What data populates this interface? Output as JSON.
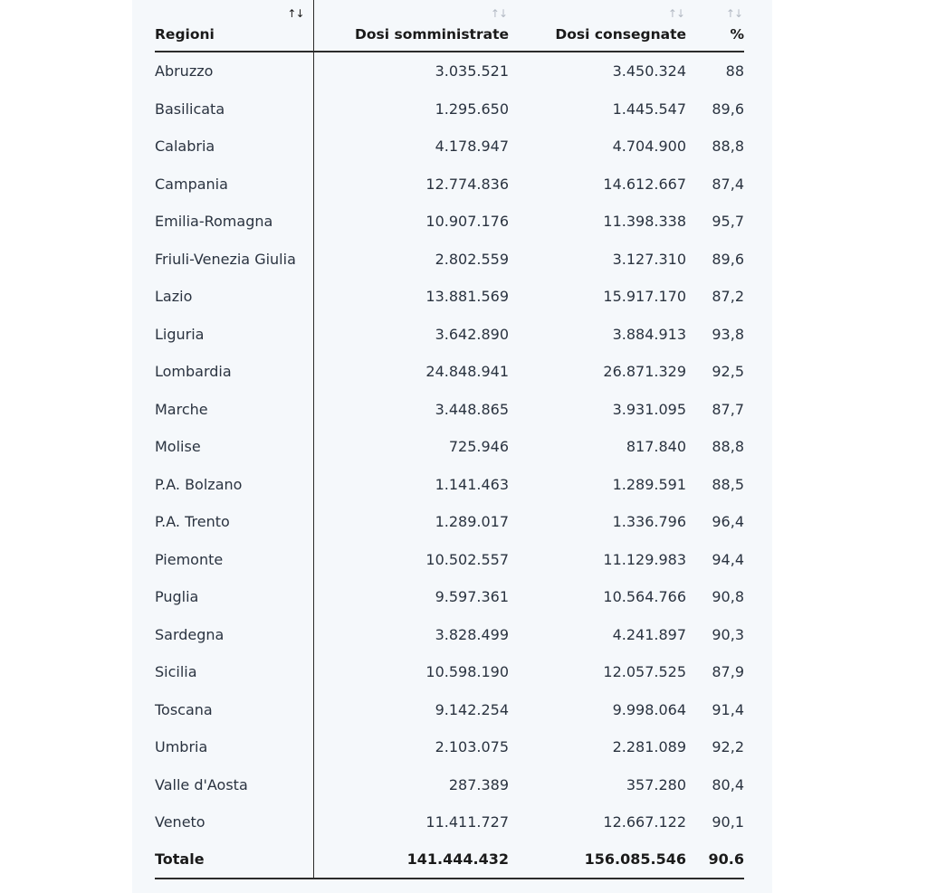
{
  "table": {
    "headers": {
      "regioni": "Regioni",
      "somministrate": "Dosi somministrate",
      "consegnate": "Dosi consegnate",
      "percent": "%",
      "sort_icon": "↑↓"
    },
    "rows": [
      {
        "region": "Abruzzo",
        "somministrate": "3.035.521",
        "consegnate": "3.450.324",
        "percent": "88"
      },
      {
        "region": "Basilicata",
        "somministrate": "1.295.650",
        "consegnate": "1.445.547",
        "percent": "89,6"
      },
      {
        "region": "Calabria",
        "somministrate": "4.178.947",
        "consegnate": "4.704.900",
        "percent": "88,8"
      },
      {
        "region": "Campania",
        "somministrate": "12.774.836",
        "consegnate": "14.612.667",
        "percent": "87,4"
      },
      {
        "region": "Emilia-Romagna",
        "somministrate": "10.907.176",
        "consegnate": "11.398.338",
        "percent": "95,7"
      },
      {
        "region": "Friuli-Venezia Giulia",
        "somministrate": "2.802.559",
        "consegnate": "3.127.310",
        "percent": "89,6"
      },
      {
        "region": "Lazio",
        "somministrate": "13.881.569",
        "consegnate": "15.917.170",
        "percent": "87,2"
      },
      {
        "region": "Liguria",
        "somministrate": "3.642.890",
        "consegnate": "3.884.913",
        "percent": "93,8"
      },
      {
        "region": "Lombardia",
        "somministrate": "24.848.941",
        "consegnate": "26.871.329",
        "percent": "92,5"
      },
      {
        "region": "Marche",
        "somministrate": "3.448.865",
        "consegnate": "3.931.095",
        "percent": "87,7"
      },
      {
        "region": "Molise",
        "somministrate": "725.946",
        "consegnate": "817.840",
        "percent": "88,8"
      },
      {
        "region": "P.A. Bolzano",
        "somministrate": "1.141.463",
        "consegnate": "1.289.591",
        "percent": "88,5"
      },
      {
        "region": "P.A. Trento",
        "somministrate": "1.289.017",
        "consegnate": "1.336.796",
        "percent": "96,4"
      },
      {
        "region": "Piemonte",
        "somministrate": "10.502.557",
        "consegnate": "11.129.983",
        "percent": "94,4"
      },
      {
        "region": "Puglia",
        "somministrate": "9.597.361",
        "consegnate": "10.564.766",
        "percent": "90,8"
      },
      {
        "region": "Sardegna",
        "somministrate": "3.828.499",
        "consegnate": "4.241.897",
        "percent": "90,3"
      },
      {
        "region": "Sicilia",
        "somministrate": "10.598.190",
        "consegnate": "12.057.525",
        "percent": "87,9"
      },
      {
        "region": "Toscana",
        "somministrate": "9.142.254",
        "consegnate": "9.998.064",
        "percent": "91,4"
      },
      {
        "region": "Umbria",
        "somministrate": "2.103.075",
        "consegnate": "2.281.089",
        "percent": "92,2"
      },
      {
        "region": "Valle d'Aosta",
        "somministrate": "287.389",
        "consegnate": "357.280",
        "percent": "80,4"
      },
      {
        "region": "Veneto",
        "somministrate": "11.411.727",
        "consegnate": "12.667.122",
        "percent": "90,1"
      }
    ],
    "total": {
      "region": "Totale",
      "somministrate": "141.444.432",
      "consegnate": "156.085.546",
      "percent": "90.6"
    }
  }
}
